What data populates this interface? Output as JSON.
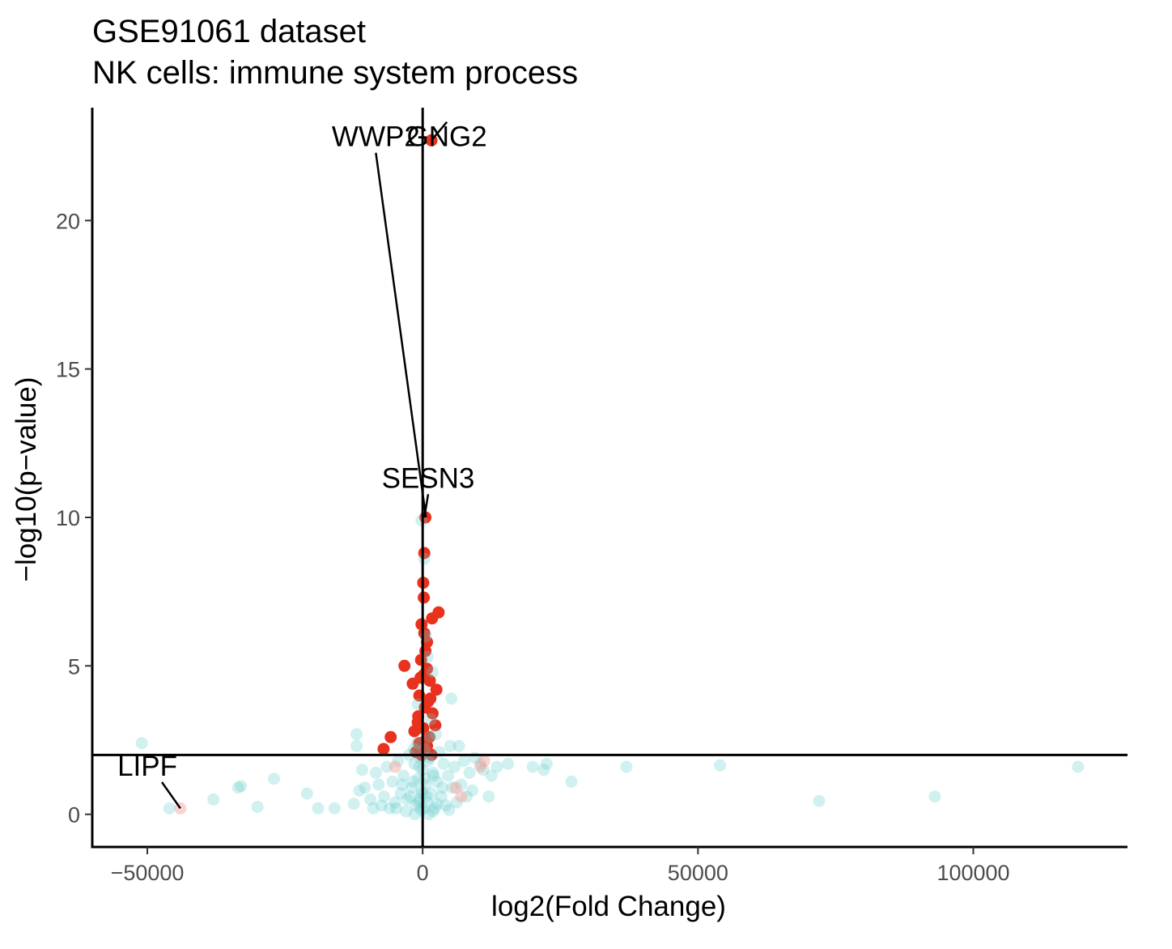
{
  "chart_data": {
    "type": "scatter",
    "title": "GSE91061 dataset",
    "subtitle": "NK cells: immune system process",
    "xlabel": "log2(Fold Change)",
    "ylabel": "−log10(p−value)",
    "xlim": [
      -60000,
      128000
    ],
    "ylim": [
      -1.1,
      23.8
    ],
    "x_ticks": [
      -50000,
      0,
      50000,
      100000
    ],
    "x_tick_labels": [
      "−50000",
      "0",
      "50000",
      "100000"
    ],
    "y_ticks": [
      0,
      5,
      10,
      15,
      20
    ],
    "y_tick_labels": [
      "0",
      "5",
      "10",
      "15",
      "20"
    ],
    "grid": false,
    "legend": "none",
    "reference_lines": {
      "vertical_x": 0,
      "horizontal_y": 2
    },
    "colors": {
      "significant": "#e8321e",
      "not_significant": "#66cccc",
      "faded_red": "#f4a09a",
      "axis": "#000000"
    },
    "series": [
      {
        "color": "#e8321e",
        "opacity": 1.0,
        "points": [
          [
            1600,
            22.7
          ],
          [
            500,
            10.0
          ],
          [
            300,
            8.8
          ],
          [
            100,
            7.8
          ],
          [
            200,
            7.3
          ],
          [
            2900,
            6.8
          ],
          [
            1700,
            6.6
          ],
          [
            -200,
            6.4
          ],
          [
            300,
            6.1
          ],
          [
            800,
            5.8
          ],
          [
            500,
            5.5
          ],
          [
            -300,
            5.2
          ],
          [
            800,
            4.9
          ],
          [
            -3300,
            5.0
          ],
          [
            200,
            4.7
          ],
          [
            1300,
            4.5
          ],
          [
            -1800,
            4.4
          ],
          [
            2500,
            4.2
          ],
          [
            -600,
            4.0
          ],
          [
            1000,
            3.8
          ],
          [
            400,
            3.6
          ],
          [
            1800,
            3.4
          ],
          [
            -800,
            3.3
          ],
          [
            2300,
            3.0
          ],
          [
            100,
            2.9
          ],
          [
            -1500,
            2.8
          ],
          [
            -5800,
            2.6
          ],
          [
            1200,
            2.6
          ],
          [
            -600,
            2.4
          ],
          [
            800,
            2.3
          ],
          [
            -7100,
            2.2
          ],
          [
            -1200,
            2.1
          ],
          [
            300,
            2.1
          ],
          [
            1600,
            2.0
          ],
          [
            -200,
            2.0
          ],
          [
            600,
            2.5
          ],
          [
            -900,
            3.1
          ],
          [
            1400,
            3.9
          ],
          [
            -400,
            4.6
          ]
        ]
      },
      {
        "color": "#66cccc",
        "opacity": 0.3,
        "points": [
          [
            -51000,
            2.4
          ],
          [
            -46000,
            0.2
          ],
          [
            -38000,
            0.5
          ],
          [
            -33500,
            0.9
          ],
          [
            -33000,
            0.95
          ],
          [
            -30000,
            0.25
          ],
          [
            -27000,
            1.2
          ],
          [
            -21000,
            0.7
          ],
          [
            -19000,
            0.2
          ],
          [
            -16000,
            0.2
          ],
          [
            -12500,
            0.35
          ],
          [
            -12000,
            2.7
          ],
          [
            -12000,
            2.3
          ],
          [
            -11500,
            0.8
          ],
          [
            -11000,
            1.5
          ],
          [
            -10500,
            0.9
          ],
          [
            -9500,
            0.5
          ],
          [
            -9000,
            0.2
          ],
          [
            -8500,
            1.4
          ],
          [
            -8000,
            1.0
          ],
          [
            -7500,
            0.3
          ],
          [
            -7000,
            0.6
          ],
          [
            -6500,
            1.6
          ],
          [
            -6000,
            0.2
          ],
          [
            -5500,
            1.1
          ],
          [
            -5000,
            0.4
          ],
          [
            -4500,
            1.8
          ],
          [
            -4000,
            0.7
          ],
          [
            -3500,
            1.3
          ],
          [
            -3000,
            0.1
          ],
          [
            -2500,
            2.0
          ],
          [
            -2000,
            0.9
          ],
          [
            -1500,
            1.7
          ],
          [
            -1200,
            0.3
          ],
          [
            -1000,
            2.4
          ],
          [
            -800,
            1.2
          ],
          [
            -600,
            0.5
          ],
          [
            -400,
            1.9
          ],
          [
            -200,
            0.8
          ],
          [
            0,
            1.5
          ],
          [
            200,
            0.2
          ],
          [
            400,
            2.2
          ],
          [
            600,
            1.0
          ],
          [
            800,
            0.4
          ],
          [
            1000,
            1.8
          ],
          [
            1300,
            2.6
          ],
          [
            1600,
            0.7
          ],
          [
            1900,
            1.4
          ],
          [
            2200,
            0.2
          ],
          [
            2600,
            1.1
          ],
          [
            3000,
            2.1
          ],
          [
            3400,
            0.6
          ],
          [
            3800,
            1.7
          ],
          [
            4200,
            0.3
          ],
          [
            4600,
            1.3
          ],
          [
            5000,
            2.3
          ],
          [
            5400,
            0.9
          ],
          [
            5800,
            1.6
          ],
          [
            6200,
            0.4
          ],
          [
            6600,
            2.3
          ],
          [
            5200,
            3.9
          ],
          [
            7000,
            1.0
          ],
          [
            7500,
            1.8
          ],
          [
            8000,
            0.6
          ],
          [
            8500,
            1.4
          ],
          [
            9000,
            0.8
          ],
          [
            9500,
            1.9
          ],
          [
            10500,
            1.7
          ],
          [
            11000,
            1.5
          ],
          [
            12000,
            0.6
          ],
          [
            12500,
            1.3
          ],
          [
            13500,
            1.6
          ],
          [
            15500,
            1.7
          ],
          [
            20000,
            1.6
          ],
          [
            22000,
            1.5
          ],
          [
            22500,
            1.7
          ],
          [
            27000,
            1.1
          ],
          [
            37000,
            1.6
          ],
          [
            54000,
            1.65
          ],
          [
            72000,
            0.45
          ],
          [
            93000,
            0.6
          ],
          [
            119000,
            1.6
          ],
          [
            -200,
            9.9
          ],
          [
            300,
            8.6
          ],
          [
            600,
            6.0
          ],
          [
            900,
            5.3
          ],
          [
            1800,
            4.8
          ],
          [
            -900,
            3.7
          ],
          [
            1500,
            3.2
          ],
          [
            -1600,
            2.2
          ],
          [
            2400,
            2.7
          ],
          [
            -2200,
            0.6
          ],
          [
            -1400,
            0.0
          ],
          [
            1100,
            0.0
          ],
          [
            -300,
            0.15
          ],
          [
            1900,
            0.1
          ],
          [
            -700,
            0.4
          ],
          [
            2600,
            0.35
          ],
          [
            -3700,
            1.0
          ],
          [
            3600,
            0.9
          ],
          [
            -4800,
            0.2
          ],
          [
            4800,
            0.15
          ],
          [
            -2800,
            0.5
          ],
          [
            700,
            0.6
          ],
          [
            -1700,
            1.1
          ],
          [
            2000,
            1.3
          ],
          [
            -600,
            1.6
          ],
          [
            1200,
            1.9
          ],
          [
            -100,
            0.7
          ],
          [
            400,
            1.2
          ]
        ]
      },
      {
        "color": "#f4a09a",
        "opacity": 0.45,
        "points": [
          [
            -44000,
            0.2
          ],
          [
            -5000,
            1.6
          ],
          [
            7000,
            0.6
          ],
          [
            10500,
            1.6
          ],
          [
            6000,
            0.9
          ],
          [
            11200,
            1.8
          ]
        ]
      }
    ],
    "annotations": [
      {
        "text": "WWP2",
        "x": -8500,
        "y": 22.5,
        "point": [
          600,
          10.0
        ]
      },
      {
        "text": "GNG2",
        "x": 4400,
        "y": 22.5,
        "point": [
          1600,
          22.7
        ]
      },
      {
        "text": "SESN3",
        "x": 1000,
        "y": 11.0,
        "point": [
          300,
          10.0
        ]
      },
      {
        "text": "LIPF",
        "x": -50000,
        "y": 1.3,
        "point": [
          -44000,
          0.2
        ]
      }
    ]
  }
}
